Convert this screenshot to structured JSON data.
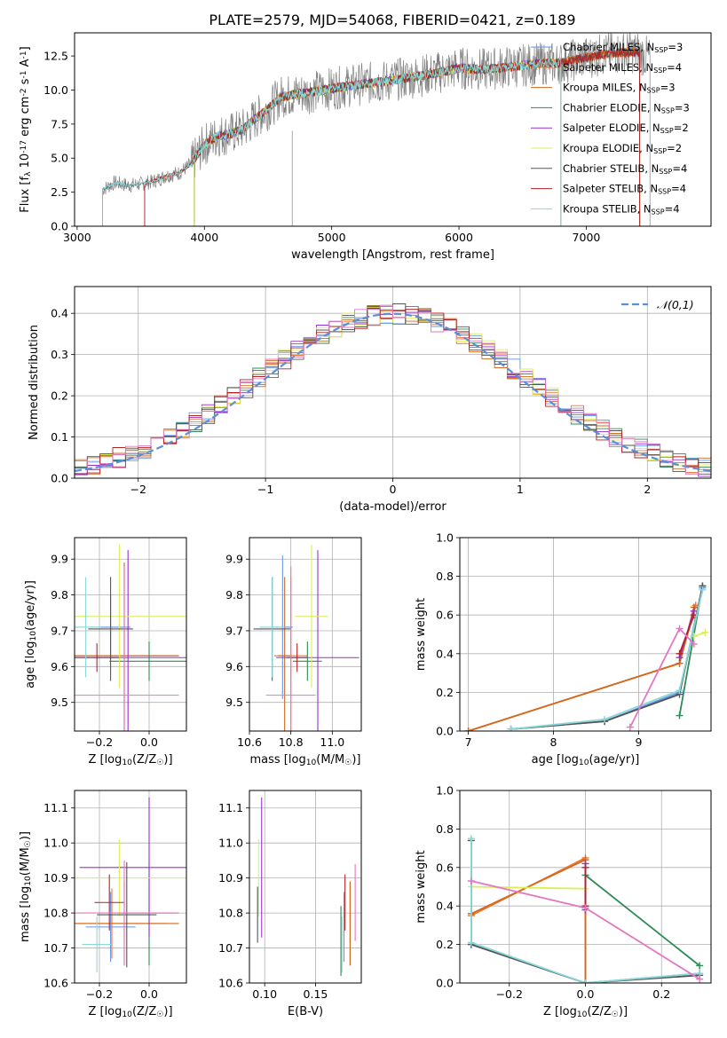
{
  "figure_title": "PLATE=2579, MJD=54068, FIBERID=0421, z=0.189",
  "series_names": [
    "Chabrier MILES, N$_{SSP}$=3",
    "Salpeter MILES, N$_{SSP}$=4",
    "Kroupa MILES, N$_{SSP}$=3",
    "Chabrier ELODIE, N$_{SSP}$=3",
    "Salpeter ELODIE, N$_{SSP}$=2",
    "Kroupa ELODIE, N$_{SSP}$=2",
    "Chabrier STELIB, N$_{SSP}$=4",
    "Salpeter STELIB, N$_{SSP}$=4",
    "Kroupa STELIB, N$_{SSP}$=4"
  ],
  "legend_labels": [
    {
      "model": "Chabrier MILES, N",
      "sub": "SSP",
      "rest": "=3"
    },
    {
      "model": "Salpeter MILES, N",
      "sub": "SSP",
      "rest": "=4"
    },
    {
      "model": "Kroupa MILES, N",
      "sub": "SSP",
      "rest": "=3"
    },
    {
      "model": "Chabrier ELODIE, N",
      "sub": "SSP",
      "rest": "=3"
    },
    {
      "model": "Salpeter ELODIE, N",
      "sub": "SSP",
      "rest": "=2"
    },
    {
      "model": "Kroupa ELODIE, N",
      "sub": "SSP",
      "rest": "=2"
    },
    {
      "model": "Chabrier STELIB, N",
      "sub": "SSP",
      "rest": "=4"
    },
    {
      "model": "Salpeter STELIB, N",
      "sub": "SSP",
      "rest": "=4"
    },
    {
      "model": "Kroupa STELIB, N",
      "sub": "SSP",
      "rest": "=4"
    }
  ],
  "colors": [
    "#6495ED",
    "#EE7733",
    "#D2691E",
    "#2E8B57",
    "#9932CC",
    "#DDEE55",
    "#555555",
    "#B22222",
    "#88D8D8"
  ],
  "aux_colors": {
    "data": "#808080",
    "gaussian": "#5B8FD8",
    "pink": "#E377C2",
    "grid": "#b0b0b0"
  },
  "chart_data": [
    {
      "id": "spectrum",
      "type": "line",
      "title": "PLATE=2579, MJD=54068, FIBERID=0421, z=0.189",
      "xlabel": "wavelength [Angstrom, rest frame]",
      "ylabel": "Flux [f$_\\lambda$ 10$^{-17}$ erg cm$^{-2}$ s$^{-1}$ A$^{-1}$]",
      "xlim": [
        2980,
        7980
      ],
      "ylim": [
        0,
        14.2
      ],
      "xticks": [
        3000,
        4000,
        5000,
        6000,
        7000
      ],
      "yticks": [
        0.0,
        2.5,
        5.0,
        7.5,
        10.0,
        12.5
      ],
      "grid": false,
      "legend_position": "upper right",
      "observed_envelope": {
        "x": [
          3200,
          3300,
          3400,
          3500,
          3600,
          3700,
          3800,
          3900,
          4000,
          4100,
          4200,
          4300,
          4400,
          4500,
          4600,
          4800,
          5000,
          5200,
          5400,
          5600,
          5800,
          6000,
          6200,
          6400,
          6600,
          6800,
          7000,
          7200,
          7400,
          7500
        ],
        "y": [
          2.7,
          3.2,
          3.0,
          3.1,
          3.3,
          3.7,
          3.9,
          4.6,
          6.0,
          6.6,
          6.8,
          7.1,
          7.9,
          8.6,
          9.5,
          9.8,
          10.1,
          10.4,
          10.6,
          10.9,
          11.2,
          11.6,
          11.5,
          11.7,
          11.9,
          12.0,
          12.4,
          12.7,
          12.8,
          12.3
        ]
      },
      "model_start_wavelength": [
        3530,
        3530,
        3530,
        3920,
        3920,
        3920,
        3200,
        3530,
        3200
      ],
      "model_end_wavelength": [
        7420,
        7420,
        7420,
        6800,
        6800,
        6800,
        7420,
        7420,
        6800
      ]
    },
    {
      "id": "residual-hist",
      "type": "line",
      "xlabel": "(data-model)/error",
      "ylabel": "Normed distribution",
      "xlim": [
        -2.5,
        2.5
      ],
      "ylim": [
        0,
        0.465
      ],
      "xticks": [
        -2,
        -1,
        0,
        1,
        2
      ],
      "yticks": [
        0.0,
        0.1,
        0.2,
        0.3,
        0.4
      ],
      "grid": true,
      "legend_position": "upper right",
      "gaussian_label": "$\\mathcal{N}(0,1)$",
      "gaussian_mu": 0,
      "gaussian_sigma": 1
    },
    {
      "id": "age-vs-Z",
      "type": "scatter",
      "xlabel": "Z [log$_{10}$(Z/Z$_\\odot$)]",
      "ylabel": "age  [log$_{10}$(age/yr)]",
      "xlim": [
        -0.3,
        0.15
      ],
      "ylim": [
        9.42,
        9.96
      ],
      "xticks": [
        -0.2,
        0.0
      ],
      "yticks": [
        9.5,
        9.6,
        9.7,
        9.8,
        9.9
      ],
      "grid": true,
      "points": [
        {
          "x": -0.155,
          "y": 9.71,
          "xerr": 0.08,
          "yerr": 0.09,
          "c": 0
        },
        {
          "x": -0.1,
          "y": 9.63,
          "xerr": 0.22,
          "yerr": 0.26,
          "c": 1
        },
        {
          "x": -0.1,
          "y": 9.63,
          "xerr": 0.22,
          "yerr": 0.26,
          "c": 2
        },
        {
          "x": 0.0,
          "y": 9.615,
          "xerr": 0.16,
          "yerr": 0.055,
          "c": 3
        },
        {
          "x": -0.085,
          "y": 9.625,
          "xerr": 0.29,
          "yerr": 0.3,
          "c": 4
        },
        {
          "x": -0.12,
          "y": 9.74,
          "xerr": 0.29,
          "yerr": 0.2,
          "c": 5
        },
        {
          "x": -0.155,
          "y": 9.705,
          "xerr": 0.09,
          "yerr": 0.145,
          "c": 6
        },
        {
          "x": -0.21,
          "y": 9.625,
          "xerr": 0.09,
          "yerr": 0.04,
          "c": 7
        },
        {
          "x": -0.1,
          "y": 9.52,
          "xerr": 0.22,
          "yerr": 0.36,
          "c": "pink"
        },
        {
          "x": -0.255,
          "y": 9.71,
          "xerr": 0.06,
          "yerr": 0.14,
          "c": 8
        }
      ]
    },
    {
      "id": "age-vs-mass",
      "type": "scatter",
      "xlabel": "mass [log$_{10}$(M/M$_\\odot$)]",
      "ylabel": "",
      "xlim": [
        10.6,
        11.14
      ],
      "ylim": [
        9.42,
        9.96
      ],
      "xticks": [
        10.6,
        10.8,
        11.0
      ],
      "yticks": [
        9.5,
        9.6,
        9.7,
        9.8,
        9.9
      ],
      "grid": true,
      "points": [
        {
          "x": 10.76,
          "y": 9.71,
          "xerr": 0.05,
          "yerr": 0.2,
          "c": 0
        },
        {
          "x": 10.8,
          "y": 9.63,
          "xerr": 0.08,
          "yerr": 0.22,
          "c": 1
        },
        {
          "x": 10.77,
          "y": 9.63,
          "xerr": 0.03,
          "yerr": 0.22,
          "c": 2
        },
        {
          "x": 10.88,
          "y": 9.615,
          "xerr": 0.07,
          "yerr": 0.055,
          "c": 3
        },
        {
          "x": 10.93,
          "y": 9.625,
          "xerr": 0.2,
          "yerr": 0.3,
          "c": 4
        },
        {
          "x": 10.9,
          "y": 9.74,
          "xerr": 0.08,
          "yerr": 0.2,
          "c": 5
        },
        {
          "x": 10.71,
          "y": 9.705,
          "xerr": 0.09,
          "yerr": 0.145,
          "c": 6
        },
        {
          "x": 10.83,
          "y": 9.625,
          "xerr": 0.05,
          "yerr": 0.04,
          "c": 7
        },
        {
          "x": 10.8,
          "y": 9.52,
          "xerr": 0.12,
          "yerr": 0.36,
          "c": "pink"
        },
        {
          "x": 10.71,
          "y": 9.71,
          "xerr": 0.06,
          "yerr": 0.14,
          "c": 8
        }
      ]
    },
    {
      "id": "mass-weight-vs-age",
      "type": "line",
      "xlabel": "age  [log$_{10}$(age/yr)]",
      "ylabel": "mass weight",
      "xlim": [
        6.9,
        9.85
      ],
      "ylim": [
        0,
        1.0
      ],
      "xticks": [
        7,
        8,
        9
      ],
      "yticks": [
        0.0,
        0.2,
        0.4,
        0.6,
        0.8,
        1.0
      ],
      "grid": true,
      "series": [
        {
          "c": 0,
          "x": [
            7.5,
            8.6,
            9.48,
            9.75
          ],
          "y": [
            0.01,
            0.05,
            0.2,
            0.74
          ]
        },
        {
          "c": 1,
          "x": [
            7.0,
            9.48,
            9.67
          ],
          "y": [
            0.0,
            0.35,
            0.65
          ]
        },
        {
          "c": 2,
          "x": [
            7.0,
            9.48,
            9.65
          ],
          "y": [
            0.0,
            0.35,
            0.64
          ]
        },
        {
          "c": 3,
          "x": [
            9.48,
            9.75
          ],
          "y": [
            0.08,
            0.75
          ]
        },
        {
          "c": 4,
          "x": [
            9.48,
            9.65
          ],
          "y": [
            0.38,
            0.62
          ]
        },
        {
          "c": 5,
          "x": [
            9.65,
            9.78
          ],
          "y": [
            0.49,
            0.51
          ]
        },
        {
          "c": 6,
          "x": [
            7.5,
            8.6,
            9.48,
            9.75
          ],
          "y": [
            0.01,
            0.05,
            0.19,
            0.75
          ]
        },
        {
          "c": 7,
          "x": [
            9.48,
            9.65
          ],
          "y": [
            0.4,
            0.6
          ]
        },
        {
          "c": 8,
          "x": [
            7.5,
            8.6,
            9.48,
            9.75
          ],
          "y": [
            0.01,
            0.06,
            0.21,
            0.73
          ]
        },
        {
          "c": "pink",
          "x": [
            8.9,
            9.48,
            9.65
          ],
          "y": [
            0.02,
            0.53,
            0.45
          ]
        }
      ]
    },
    {
      "id": "mass-vs-Z",
      "type": "scatter",
      "xlabel": "Z [log$_{10}$(Z/Z$_\\odot$)]",
      "ylabel": "mass [log$_{10}$(M/M$_\\odot$)]",
      "xlim": [
        -0.3,
        0.15
      ],
      "ylim": [
        10.6,
        11.15
      ],
      "xticks": [
        -0.2,
        0.0
      ],
      "yticks": [
        10.6,
        10.7,
        10.8,
        10.9,
        11.0,
        11.1
      ],
      "grid": true,
      "points": [
        {
          "x": -0.155,
          "y": 10.76,
          "xerr": 0.1,
          "yerr": 0.1,
          "c": 0
        },
        {
          "x": -0.15,
          "y": 10.77,
          "xerr": 0.22,
          "yerr": 0.1,
          "c": 1
        },
        {
          "x": -0.1,
          "y": 10.77,
          "xerr": 0.22,
          "yerr": 0.12,
          "c": 2
        },
        {
          "x": 0.0,
          "y": 10.8,
          "xerr": 0.12,
          "yerr": 0.15,
          "c": 3
        },
        {
          "x": 0.0,
          "y": 10.93,
          "xerr": 0.28,
          "yerr": 0.2,
          "c": 4
        },
        {
          "x": -0.12,
          "y": 10.9,
          "xerr": 0.28,
          "yerr": 0.11,
          "c": 5
        },
        {
          "x": -0.09,
          "y": 10.795,
          "xerr": 0.12,
          "yerr": 0.15,
          "c": 6
        },
        {
          "x": -0.16,
          "y": 10.83,
          "xerr": 0.06,
          "yerr": 0.08,
          "c": 7
        },
        {
          "x": -0.1,
          "y": 10.8,
          "xerr": 0.22,
          "yerr": 0.15,
          "c": "pink"
        },
        {
          "x": -0.21,
          "y": 10.71,
          "xerr": 0.06,
          "yerr": 0.08,
          "c": 8
        }
      ]
    },
    {
      "id": "mass-vs-EBV",
      "type": "scatter",
      "xlabel": "E(B-V)",
      "ylabel": "",
      "xlim": [
        0.085,
        0.195
      ],
      "ylim": [
        10.6,
        11.15
      ],
      "xticks": [
        0.1,
        0.15
      ],
      "yticks": [
        10.6,
        10.7,
        10.8,
        10.9,
        11.0,
        11.1
      ],
      "grid": true,
      "points": [
        {
          "x": 0.178,
          "y": 10.76,
          "xerr": 0,
          "yerr": 0.1,
          "c": 0
        },
        {
          "x": 0.184,
          "y": 10.77,
          "xerr": 0,
          "yerr": 0.12,
          "c": 1
        },
        {
          "x": 0.184,
          "y": 10.77,
          "xerr": 0,
          "yerr": 0.12,
          "c": 2
        },
        {
          "x": 0.175,
          "y": 10.72,
          "xerr": 0,
          "yerr": 0.1,
          "c": 3
        },
        {
          "x": 0.097,
          "y": 10.93,
          "xerr": 0,
          "yerr": 0.2,
          "c": 4
        },
        {
          "x": 0.094,
          "y": 10.9,
          "xerr": 0,
          "yerr": 0.11,
          "c": 5
        },
        {
          "x": 0.093,
          "y": 10.795,
          "xerr": 0,
          "yerr": 0.08,
          "c": 6
        },
        {
          "x": 0.179,
          "y": 10.83,
          "xerr": 0,
          "yerr": 0.08,
          "c": 7
        },
        {
          "x": 0.189,
          "y": 10.83,
          "xerr": 0,
          "yerr": 0.11,
          "c": "pink"
        },
        {
          "x": 0.176,
          "y": 10.71,
          "xerr": 0,
          "yerr": 0.08,
          "c": 8
        }
      ]
    },
    {
      "id": "mass-weight-vs-Z",
      "type": "line",
      "xlabel": "Z [log$_{10}$(Z/Z$_\\odot$)]",
      "ylabel": "mass weight",
      "xlim": [
        -0.33,
        0.33
      ],
      "ylim": [
        0,
        1.0
      ],
      "xticks": [
        -0.2,
        0.0,
        0.2
      ],
      "yticks": [
        0.0,
        0.2,
        0.4,
        0.6,
        0.8,
        1.0
      ],
      "grid": true,
      "series": [
        {
          "c": 0,
          "x": [
            -0.3,
            0.0,
            0.3
          ],
          "y": [
            0.2,
            0.0,
            0.05
          ]
        },
        {
          "c": 1,
          "x": [
            -0.3,
            0.0,
            0.0
          ],
          "y": [
            0.35,
            0.65,
            0.0
          ]
        },
        {
          "c": 2,
          "x": [
            -0.3,
            0.0,
            0.0
          ],
          "y": [
            0.36,
            0.64,
            0.0
          ]
        },
        {
          "c": 3,
          "x": [
            0.0,
            0.3
          ],
          "y": [
            0.56,
            0.09
          ]
        },
        {
          "c": 4,
          "x": [
            0.0,
            0.0
          ],
          "y": [
            0.38,
            0.62
          ]
        },
        {
          "c": 5,
          "x": [
            -0.3,
            0.0
          ],
          "y": [
            0.5,
            0.49
          ]
        },
        {
          "c": 6,
          "x": [
            -0.3,
            -0.3,
            0.0,
            0.3
          ],
          "y": [
            0.74,
            0.2,
            0.0,
            0.04
          ]
        },
        {
          "c": 7,
          "x": [
            0.0,
            0.0
          ],
          "y": [
            0.4,
            0.6
          ]
        },
        {
          "c": 8,
          "x": [
            -0.3,
            -0.3,
            0.0,
            0.3
          ],
          "y": [
            0.75,
            0.21,
            0.0,
            0.05
          ]
        },
        {
          "c": "pink",
          "x": [
            -0.3,
            0.0,
            0.3
          ],
          "y": [
            0.53,
            0.39,
            0.02
          ]
        }
      ]
    }
  ]
}
